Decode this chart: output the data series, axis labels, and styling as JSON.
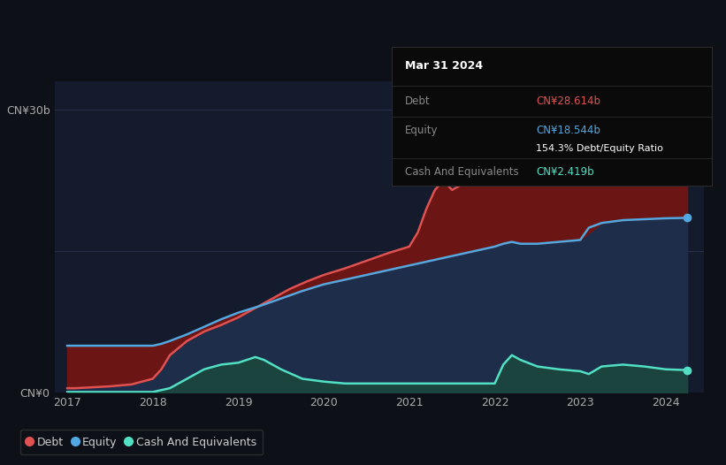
{
  "background_color": "#0d1117",
  "plot_bg_color": "#141b2d",
  "title": "Mar 31 2024",
  "tooltip_debt": "CN¥28.614b",
  "tooltip_equity": "CN¥18.544b",
  "tooltip_ratio": "154.3% Debt/Equity Ratio",
  "tooltip_cash": "CN¥2.419b",
  "ylabel_top": "CN¥30b",
  "ylabel_bottom": "CN¥0",
  "x_ticks": [
    2017,
    2018,
    2019,
    2020,
    2021,
    2022,
    2023,
    2024
  ],
  "debt_color": "#e05252",
  "equity_color": "#52a8e0",
  "cash_color": "#52e0c4",
  "debt_fill": "#6b1515",
  "equity_fill": "#1e2d4a",
  "cash_fill": "#1a4a3a",
  "debt_data": {
    "x": [
      2017.0,
      2017.1,
      2017.2,
      2017.3,
      2017.5,
      2017.75,
      2018.0,
      2018.1,
      2018.2,
      2018.4,
      2018.6,
      2018.8,
      2019.0,
      2019.2,
      2019.4,
      2019.6,
      2019.8,
      2020.0,
      2020.25,
      2020.5,
      2020.75,
      2021.0,
      2021.1,
      2021.2,
      2021.3,
      2021.4,
      2021.5,
      2021.6,
      2021.75,
      2022.0,
      2022.1,
      2022.2,
      2022.3,
      2022.5,
      2022.75,
      2023.0,
      2023.25,
      2023.5,
      2023.75,
      2024.0,
      2024.25
    ],
    "y": [
      0.5,
      0.5,
      0.55,
      0.6,
      0.7,
      0.9,
      1.5,
      2.5,
      4.0,
      5.5,
      6.5,
      7.2,
      8.0,
      9.0,
      10.0,
      11.0,
      11.8,
      12.5,
      13.2,
      14.0,
      14.8,
      15.5,
      17.0,
      19.5,
      21.5,
      22.5,
      21.5,
      22.0,
      22.5,
      24.0,
      25.5,
      26.5,
      26.0,
      25.5,
      25.5,
      25.0,
      25.5,
      26.5,
      27.5,
      28.5,
      28.614
    ]
  },
  "equity_data": {
    "x": [
      2017.0,
      2017.25,
      2017.5,
      2017.75,
      2018.0,
      2018.1,
      2018.2,
      2018.4,
      2018.6,
      2018.8,
      2019.0,
      2019.25,
      2019.5,
      2019.75,
      2020.0,
      2020.25,
      2020.5,
      2020.75,
      2021.0,
      2021.25,
      2021.5,
      2021.75,
      2022.0,
      2022.1,
      2022.2,
      2022.3,
      2022.5,
      2022.75,
      2023.0,
      2023.1,
      2023.25,
      2023.5,
      2023.75,
      2024.0,
      2024.25
    ],
    "y": [
      5.0,
      5.0,
      5.0,
      5.0,
      5.0,
      5.2,
      5.5,
      6.2,
      7.0,
      7.8,
      8.5,
      9.2,
      10.0,
      10.8,
      11.5,
      12.0,
      12.5,
      13.0,
      13.5,
      14.0,
      14.5,
      15.0,
      15.5,
      15.8,
      16.0,
      15.8,
      15.8,
      16.0,
      16.2,
      17.5,
      18.0,
      18.3,
      18.4,
      18.5,
      18.544
    ]
  },
  "cash_data": {
    "x": [
      2017.0,
      2017.25,
      2017.5,
      2017.75,
      2018.0,
      2018.2,
      2018.4,
      2018.6,
      2018.8,
      2019.0,
      2019.1,
      2019.2,
      2019.3,
      2019.5,
      2019.75,
      2020.0,
      2020.25,
      2020.5,
      2020.75,
      2021.0,
      2021.25,
      2021.5,
      2021.75,
      2022.0,
      2022.1,
      2022.2,
      2022.3,
      2022.5,
      2022.75,
      2023.0,
      2023.1,
      2023.25,
      2023.5,
      2023.75,
      2024.0,
      2024.25
    ],
    "y": [
      0.1,
      0.1,
      0.1,
      0.1,
      0.1,
      0.5,
      1.5,
      2.5,
      3.0,
      3.2,
      3.5,
      3.8,
      3.5,
      2.5,
      1.5,
      1.2,
      1.0,
      1.0,
      1.0,
      1.0,
      1.0,
      1.0,
      1.0,
      1.0,
      3.0,
      4.0,
      3.5,
      2.8,
      2.5,
      2.3,
      2.0,
      2.8,
      3.0,
      2.8,
      2.5,
      2.419
    ]
  },
  "ylim": [
    0,
    33
  ],
  "xlim": [
    2016.85,
    2024.45
  ]
}
